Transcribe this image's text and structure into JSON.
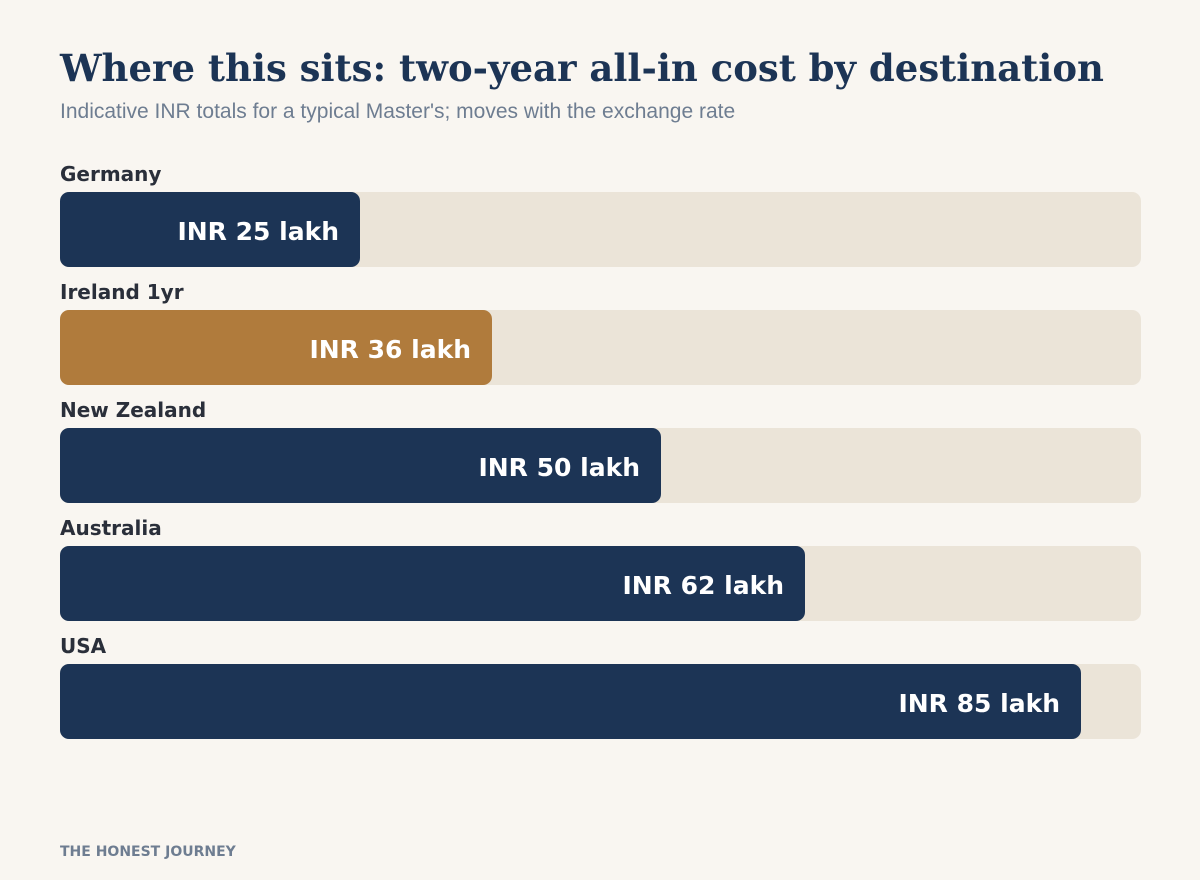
{
  "title": "Where this sits: two-year all-in cost by destination",
  "subtitle": "Indicative INR totals for a typical Master's; moves with the exchange rate",
  "footer": "THE HONEST JOURNEY",
  "colors": {
    "background": "#f9f6f1",
    "bar_default": "#1c3455",
    "bar_highlight": "#b07b3c",
    "track": "#ebe4d8",
    "title": "#1c3455",
    "subtitle": "#6e7d91"
  },
  "chart_data": {
    "type": "bar",
    "orientation": "horizontal",
    "unit": "INR lakh",
    "xlim": [
      0,
      90
    ],
    "grid": false,
    "highlight": "Ireland 1yr",
    "categories": [
      "Germany",
      "Ireland 1yr",
      "New Zealand",
      "Australia",
      "USA"
    ],
    "values": [
      25,
      36,
      50,
      62,
      85
    ],
    "labels": [
      "INR 25 lakh",
      "INR 36 lakh",
      "INR 50 lakh",
      "INR 62 lakh",
      "INR 85 lakh"
    ]
  }
}
